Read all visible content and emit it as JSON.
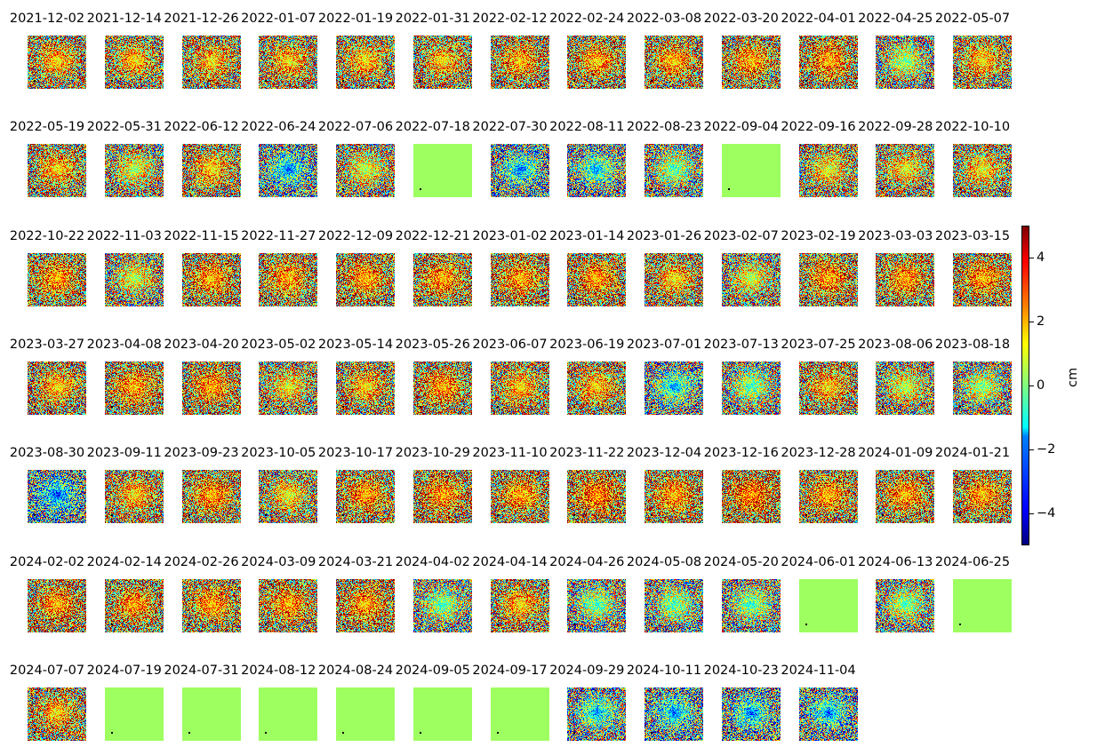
{
  "dates": [
    "2021-12-02",
    "2021-12-14",
    "2021-12-26",
    "2022-01-07",
    "2022-01-19",
    "2022-01-31",
    "2022-02-12",
    "2022-02-24",
    "2022-03-08",
    "2022-03-20",
    "2022-04-01",
    "2022-04-25",
    "2022-05-07",
    "2022-05-19",
    "2022-05-31",
    "2022-06-12",
    "2022-06-24",
    "2022-07-06",
    "2022-07-18",
    "2022-07-30",
    "2022-08-11",
    "2022-08-23",
    "2022-09-04",
    "2022-09-16",
    "2022-09-28",
    "2022-10-10",
    "2022-10-22",
    "2022-11-03",
    "2022-11-15",
    "2022-11-27",
    "2022-12-09",
    "2022-12-21",
    "2023-01-02",
    "2023-01-14",
    "2023-01-26",
    "2023-02-07",
    "2023-02-19",
    "2023-03-03",
    "2023-03-15",
    "2023-03-27",
    "2023-04-08",
    "2023-04-20",
    "2023-05-02",
    "2023-05-14",
    "2023-05-26",
    "2023-06-07",
    "2023-06-19",
    "2023-07-01",
    "2023-07-13",
    "2023-07-25",
    "2023-08-06",
    "2023-08-18",
    "2023-08-30",
    "2023-09-11",
    "2023-09-23",
    "2023-10-05",
    "2023-10-17",
    "2023-10-29",
    "2023-11-10",
    "2023-11-22",
    "2023-12-04",
    "2023-12-16",
    "2023-12-28",
    "2024-01-09",
    "2024-01-21",
    "2024-02-02",
    "2024-02-14",
    "2024-02-26",
    "2024-03-09",
    "2024-03-21",
    "2024-04-02",
    "2024-04-14",
    "2024-04-26",
    "2024-05-08",
    "2024-05-20",
    "2024-06-01",
    "2024-06-13",
    "2024-06-25",
    "2024-07-07",
    "2024-07-19",
    "2024-07-31",
    "2024-08-12",
    "2024-08-24",
    "2024-09-05",
    "2024-09-17",
    "2024-09-29",
    "2024-10-11",
    "2024-10-23",
    "2024-11-04"
  ],
  "colorbar": {
    "unit": "cm",
    "range": [
      -5,
      5
    ],
    "ticks": [
      4,
      2,
      0,
      -2,
      -4
    ],
    "tick_labels": [
      "4",
      "2",
      "0",
      "−2",
      "−4"
    ],
    "colormap": "jet"
  },
  "mean_displacement_cm": [
    2.5,
    2.5,
    2.5,
    2.5,
    2.5,
    2.5,
    2.8,
    2.8,
    2.8,
    2.8,
    3.0,
    1.0,
    2.5,
    2.5,
    1.5,
    2.5,
    -1.0,
    1.5,
    0.0,
    -1.0,
    -0.5,
    0.5,
    0.0,
    2.0,
    2.0,
    2.0,
    3.0,
    1.5,
    3.0,
    3.0,
    3.0,
    3.0,
    3.0,
    3.0,
    2.5,
    1.5,
    3.0,
    3.0,
    3.0,
    2.5,
    3.0,
    3.0,
    2.0,
    2.5,
    3.0,
    2.5,
    2.5,
    -0.5,
    0.5,
    2.5,
    1.5,
    1.0,
    -1.5,
    2.5,
    3.0,
    2.0,
    3.0,
    3.0,
    3.0,
    3.5,
    3.0,
    3.5,
    3.0,
    3.0,
    3.0,
    3.0,
    3.0,
    3.0,
    3.0,
    3.0,
    0.5,
    2.5,
    0.3,
    0.5,
    0.3,
    0.0,
    0.8,
    0.0,
    2.5,
    0.0,
    0.0,
    0.0,
    0.0,
    0.0,
    0.0,
    -0.5,
    -1.0,
    -1.0,
    -1.0
  ]
}
